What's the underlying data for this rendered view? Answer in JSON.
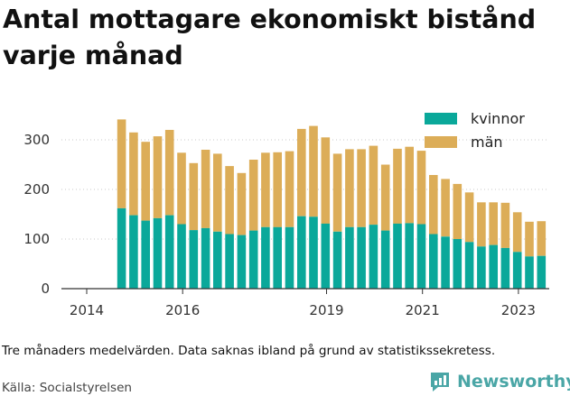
{
  "title": "Antal mottagare ekonomiskt bistånd varje månad",
  "note": "Tre månaders medelvärden. Data saknas ibland på grund av statistikssekretess.",
  "source": "Källa: Socialstyrelsen",
  "brand": "Newsworthy",
  "colors": {
    "kvinnor": "#0aa89a",
    "man": "#dcad58",
    "brand": "#4aa6a6"
  },
  "chart_data": {
    "type": "bar",
    "stacked": true,
    "x": [
      "2014-06",
      "2014-09",
      "2014-12",
      "2015-03",
      "2015-06",
      "2015-09",
      "2015-12",
      "2016-03",
      "2016-06",
      "2016-09",
      "2016-12",
      "2017-03",
      "2017-06",
      "2017-09",
      "2017-12",
      "2018-03",
      "2018-06",
      "2018-09",
      "2018-12",
      "2019-03",
      "2019-06",
      "2019-09",
      "2019-12",
      "2020-03",
      "2020-06",
      "2020-09",
      "2020-12",
      "2021-03",
      "2021-06",
      "2021-09",
      "2021-12",
      "2022-03",
      "2022-06",
      "2022-09",
      "2022-12",
      "2023-03"
    ],
    "series": [
      {
        "name": "kvinnor",
        "values": [
          162,
          148,
          137,
          142,
          148,
          130,
          118,
          122,
          115,
          110,
          108,
          117,
          124,
          124,
          124,
          146,
          145,
          131,
          115,
          124,
          124,
          129,
          117,
          131,
          132,
          130,
          110,
          105,
          100,
          94,
          85,
          88,
          82,
          74,
          65,
          66
        ]
      },
      {
        "name": "män",
        "values": [
          179,
          167,
          159,
          165,
          172,
          144,
          135,
          158,
          157,
          137,
          125,
          143,
          150,
          151,
          153,
          176,
          183,
          174,
          157,
          157,
          157,
          159,
          133,
          151,
          154,
          148,
          119,
          116,
          111,
          100,
          89,
          86,
          91,
          80,
          70,
          70
        ]
      }
    ],
    "xticks": [
      "2014",
      "2016",
      "2019",
      "2021",
      "2023"
    ],
    "yticks": [
      0,
      100,
      200,
      300
    ],
    "ylim": [
      0,
      360
    ],
    "legend": [
      "kvinnor",
      "män"
    ],
    "legend_position": "top-right",
    "grid": "horizontal-dotted"
  }
}
